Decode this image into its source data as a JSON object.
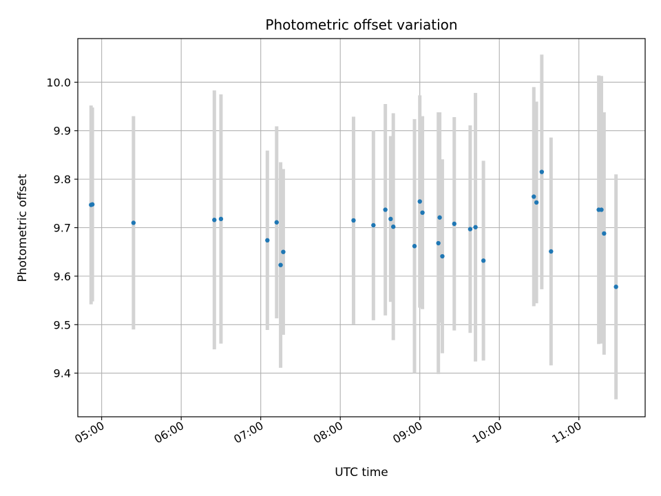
{
  "chart_data": {
    "type": "scatter",
    "title": "Photometric offset variation",
    "xlabel": "UTC time",
    "ylabel": "Photometric offset",
    "x_range": [
      "04:42",
      "11:50"
    ],
    "ylim": [
      9.31,
      10.09
    ],
    "grid": true,
    "legend": "none",
    "colors": {
      "point": "#1f77b4",
      "errorbar": "#d3d3d3",
      "grid": "#b0b0b0",
      "axes": "#000000"
    },
    "x_ticks": [
      "05:00",
      "06:00",
      "07:00",
      "08:00",
      "09:00",
      "10:00",
      "11:00"
    ],
    "y_ticks": [
      "9.4",
      "9.5",
      "9.6",
      "9.7",
      "9.8",
      "9.9",
      "10.0"
    ],
    "series": [
      {
        "points": [
          {
            "x": "04:52",
            "y": 9.747,
            "err": 0.205
          },
          {
            "x": "04:53",
            "y": 9.748,
            "err": 0.2
          },
          {
            "x": "05:24",
            "y": 9.71,
            "err": 0.22
          },
          {
            "x": "06:25",
            "y": 9.716,
            "err": 0.267
          },
          {
            "x": "06:30",
            "y": 9.718,
            "err": 0.257
          },
          {
            "x": "07:05",
            "y": 9.674,
            "err": 0.185
          },
          {
            "x": "07:12",
            "y": 9.711,
            "err": 0.198
          },
          {
            "x": "07:15",
            "y": 9.623,
            "err": 0.212
          },
          {
            "x": "07:17",
            "y": 9.65,
            "err": 0.171
          },
          {
            "x": "08:10",
            "y": 9.715,
            "err": 0.214
          },
          {
            "x": "08:25",
            "y": 9.705,
            "err": 0.196
          },
          {
            "x": "08:34",
            "y": 9.737,
            "err": 0.218
          },
          {
            "x": "08:38",
            "y": 9.718,
            "err": 0.171
          },
          {
            "x": "08:40",
            "y": 9.702,
            "err": 0.234
          },
          {
            "x": "08:56",
            "y": 9.662,
            "err": 0.262
          },
          {
            "x": "09:00",
            "y": 9.754,
            "err": 0.219
          },
          {
            "x": "09:02",
            "y": 9.731,
            "err": 0.199
          },
          {
            "x": "09:14",
            "y": 9.668,
            "err": 0.27
          },
          {
            "x": "09:15",
            "y": 9.721,
            "err": 0.217
          },
          {
            "x": "09:17",
            "y": 9.641,
            "err": 0.2
          },
          {
            "x": "09:26",
            "y": 9.708,
            "err": 0.22
          },
          {
            "x": "09:38",
            "y": 9.697,
            "err": 0.214
          },
          {
            "x": "09:42",
            "y": 9.701,
            "err": 0.277
          },
          {
            "x": "09:48",
            "y": 9.632,
            "err": 0.206
          },
          {
            "x": "10:26",
            "y": 9.764,
            "err": 0.226
          },
          {
            "x": "10:28",
            "y": 9.752,
            "err": 0.208
          },
          {
            "x": "10:32",
            "y": 9.815,
            "err": 0.242
          },
          {
            "x": "10:39",
            "y": 9.651,
            "err": 0.235
          },
          {
            "x": "11:15",
            "y": 9.737,
            "err": 0.277
          },
          {
            "x": "11:17",
            "y": 9.737,
            "err": 0.276
          },
          {
            "x": "11:19",
            "y": 9.688,
            "err": 0.25
          },
          {
            "x": "11:28",
            "y": 9.578,
            "err": 0.232
          }
        ]
      }
    ]
  }
}
